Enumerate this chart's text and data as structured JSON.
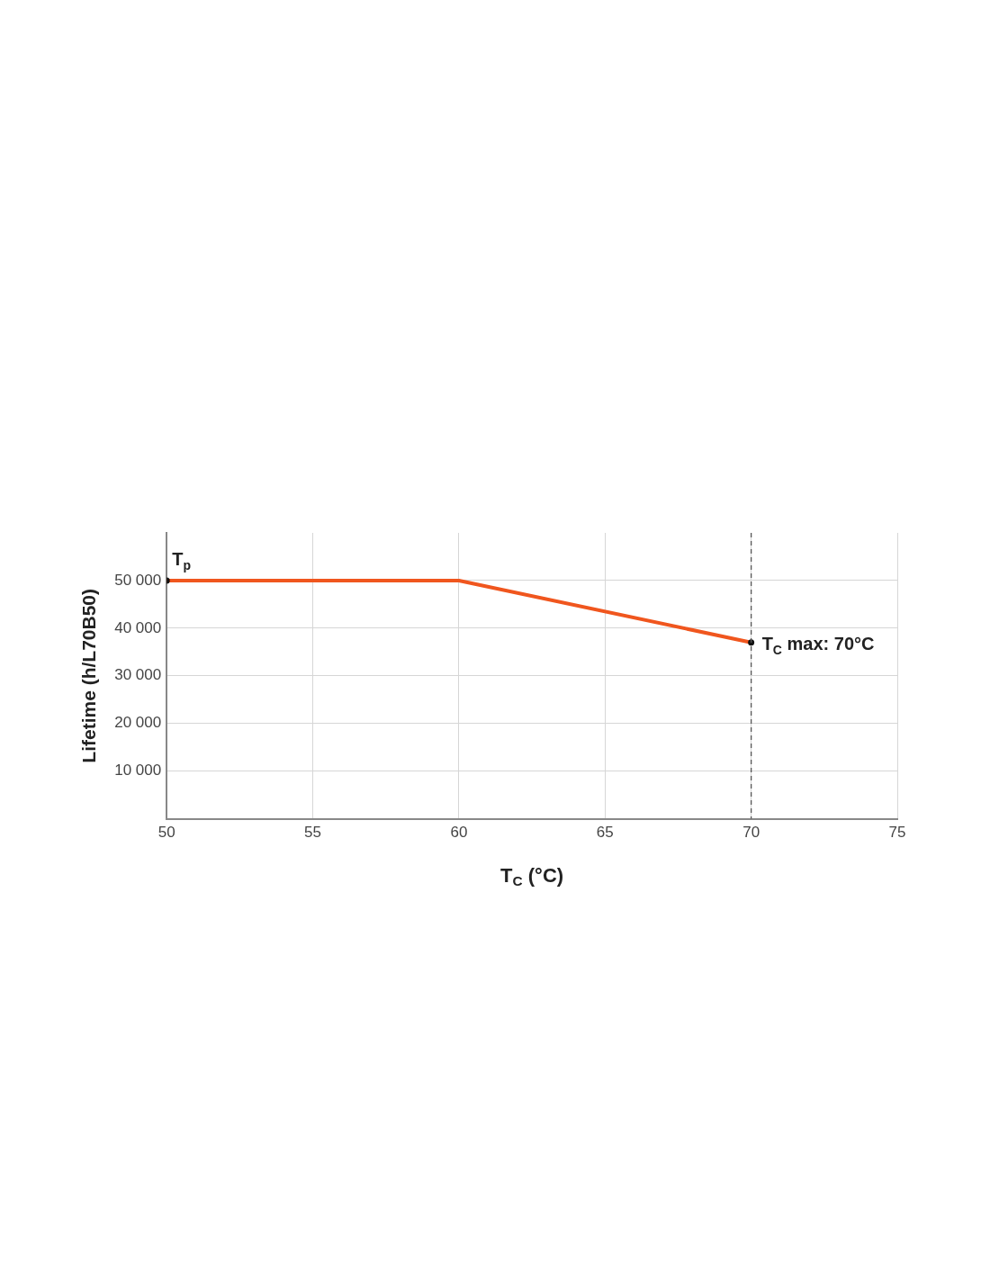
{
  "chart_data": {
    "type": "line",
    "xlabel": "T$_{C}$ (°C)",
    "ylabel": "Lifetime (h/L70B50)",
    "xlim": [
      50,
      75
    ],
    "xticks": [
      50,
      55,
      60,
      65,
      70,
      75
    ],
    "ylim": [
      0,
      60000
    ],
    "yticks": [
      {
        "value": 10000,
        "label": "10 000"
      },
      {
        "value": 20000,
        "label": "20 000"
      },
      {
        "value": 30000,
        "label": "30 000"
      },
      {
        "value": 40000,
        "label": "40 000"
      },
      {
        "value": 50000,
        "label": "50 000"
      }
    ],
    "grid": true,
    "legend": false,
    "series": [
      {
        "color": "#f0561e",
        "x": [
          50,
          60,
          70
        ],
        "values": [
          50000,
          50000,
          37000
        ]
      },
      {
        "type": "scatter",
        "color": "#111111",
        "x": [
          50,
          70
        ],
        "values": [
          50000,
          37000
        ]
      }
    ],
    "ref_lines": [
      {
        "axis": "x",
        "value": 70,
        "color": "#555555",
        "line_style": "dashed"
      }
    ],
    "annotations": [
      {
        "text": "T$_{p}$",
        "x": 50,
        "y": 50000
      },
      {
        "text": "T$_{C}$ max: 70°C",
        "x": 70,
        "y": 37000
      }
    ]
  }
}
